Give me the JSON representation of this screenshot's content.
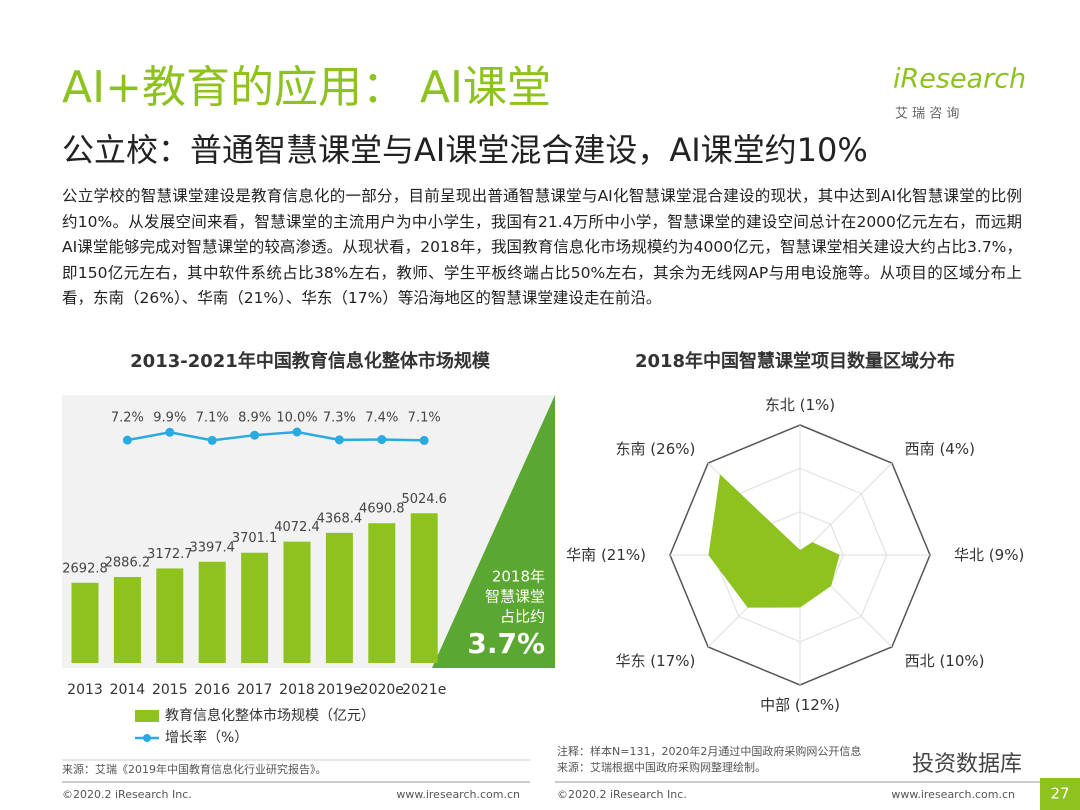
{
  "logo": {
    "brand": "iResearch",
    "sub": "艾 瑞 咨 询"
  },
  "title": "AI+教育的应用： AI课堂",
  "subtitle": "公立校：普通智慧课堂与AI课堂混合建设，AI课堂约10%",
  "paragraph": "公立学校的智慧课堂建设是教育信息化的一部分，目前呈现出普通智慧课堂与AI化智慧课堂混合建设的现状，其中达到AI化智慧课堂的比例约10%。从发展空间来看，智慧课堂的主流用户为中小学生，我国有21.4万所中小学，智慧课堂的建设空间总计在2000亿元左右，而远期AI课堂能够完成对智慧课堂的较高渗透。从现状看，2018年，我国教育信息化市场规模约为4000亿元，智慧课堂相关建设大约占比3.7%，即150亿元左右，其中软件系统占比38%左右，教师、学生平板终端占比50%左右，其余为无线网AP与用电设施等。从项目的区域分布上看，东南（26%）、华南（21%）、华东（17%）等沿海地区的智慧课堂建设走在前沿。",
  "chart_data": [
    {
      "type": "bar",
      "title": "2013-2021年中国教育信息化整体市场规模",
      "categories": [
        "2013",
        "2014",
        "2015",
        "2016",
        "2017",
        "2018",
        "2019e",
        "2020e",
        "2021e"
      ],
      "series": [
        {
          "name": "教育信息化整体市场规模（亿元）",
          "type": "bar",
          "color": "#8dc21f",
          "values": [
            2692.8,
            2886.2,
            3172.7,
            3397.4,
            3701.1,
            4072.4,
            4368.4,
            4690.8,
            5024.6
          ]
        },
        {
          "name": "增长率（%）",
          "type": "line",
          "color": "#29abe2",
          "values": [
            null,
            7.2,
            9.9,
            7.1,
            8.9,
            10.0,
            7.3,
            7.4,
            7.1
          ],
          "value_labels": [
            null,
            "7.2%",
            "9.9%",
            "7.1%",
            "8.9%",
            "10.0%",
            "7.3%",
            "7.4%",
            "7.1%"
          ]
        }
      ],
      "callout": {
        "lines": [
          "2018年",
          "智慧课堂",
          "占比约"
        ],
        "highlight": "3.7%"
      },
      "source": "来源：艾瑞《2019年中国教育信息化行业研究报告》。"
    },
    {
      "type": "radar",
      "title": "2018年中国智慧课堂项目数量区域分布",
      "categories": [
        "东北",
        "西南",
        "华北",
        "西北",
        "中部",
        "华东",
        "华南",
        "东南"
      ],
      "values": [
        1,
        4,
        9,
        10,
        12,
        17,
        21,
        26
      ],
      "value_labels": [
        "(1%)",
        "(4%)",
        "(9%)",
        "(10%)",
        "(12%)",
        "(17%)",
        "(21%)",
        "(26%)"
      ],
      "color": "#8dc21f",
      "rlim": [
        0,
        30
      ],
      "rticks": [
        10,
        20,
        30
      ],
      "notes": [
        "注释：样本N=131，2020年2月通过中国政府采购网公开信息",
        "来源：艾瑞根据中国政府采购网整理绘制。"
      ]
    }
  ],
  "footer": {
    "copyright": "©2020.2 iResearch Inc.",
    "url": "www.iresearch.com.cn",
    "page": "27",
    "watermark": "投资数据库"
  }
}
